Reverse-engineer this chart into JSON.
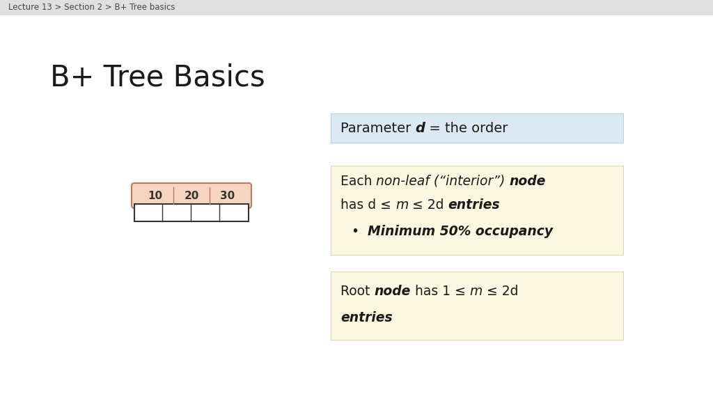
{
  "title": "B+ Tree Basics",
  "breadcrumb": "Lecture 13 > Section 2 > B+ Tree basics",
  "background_color": "#ffffff",
  "breadcrumb_bg": "#e0e0e0",
  "box1_bg": "#dce9f5",
  "box1_border": "#b8d0e8",
  "box2_bg": "#fdf8e1",
  "box2_border": "#e0d8a0",
  "box3_bg": "#fdf8e1",
  "box3_border": "#e0d8a0",
  "node_keys": [
    "10",
    "20",
    "30"
  ],
  "node_top_fill": "#f5d5c0",
  "node_top_border": "#c07860",
  "node_bottom_fill": "#ffffff",
  "node_bottom_border": "#333333",
  "text_color": "#1a1a1a"
}
